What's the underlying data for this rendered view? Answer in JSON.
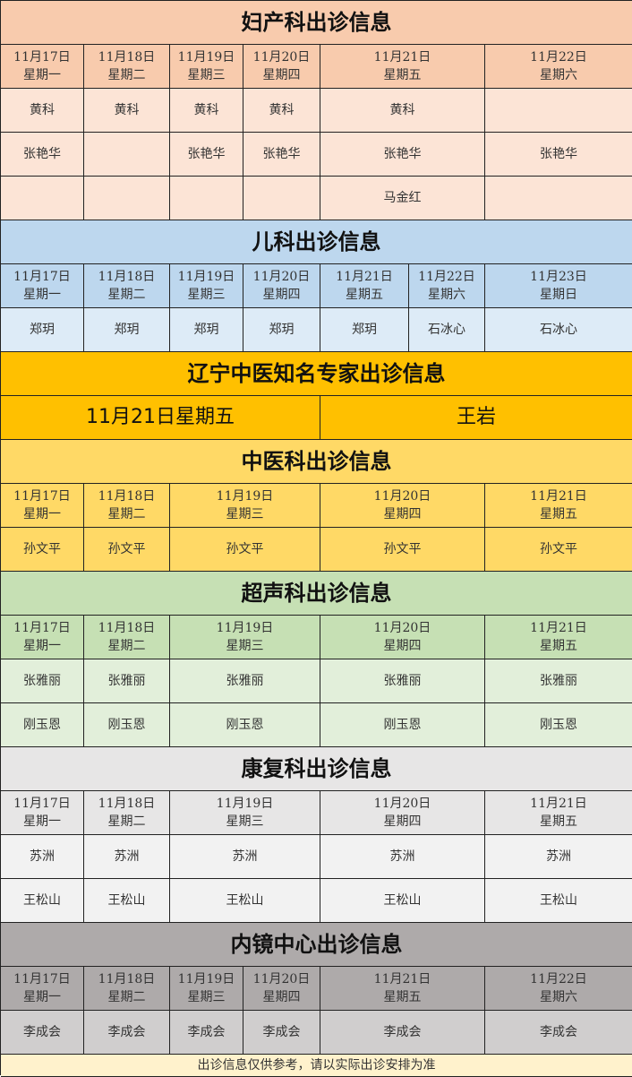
{
  "sections": [
    {
      "title": "妇产科出诊信息",
      "colors": {
        "title": "#f8cbad",
        "header": "#f8cbad",
        "cell": "#fce4d6"
      },
      "headers": [
        {
          "date": "11月17日",
          "weekday": "星期一",
          "span": 1
        },
        {
          "date": "11月18日",
          "weekday": "星期二",
          "span": 1
        },
        {
          "date": "11月19日",
          "weekday": "星期三",
          "span": 1
        },
        {
          "date": "11月20日",
          "weekday": "星期四",
          "span": 1
        },
        {
          "date": "11月21日",
          "weekday": "星期五",
          "span": 2
        },
        {
          "date": "11月22日",
          "weekday": "星期六",
          "span": 1
        }
      ],
      "rows": [
        [
          "黄科",
          "黄科",
          "黄科",
          "黄科",
          "黄科",
          ""
        ],
        [
          "张艳华",
          "",
          "张艳华",
          "张艳华",
          "张艳华",
          "张艳华"
        ],
        [
          "",
          "",
          "",
          "",
          "马金红",
          ""
        ]
      ]
    },
    {
      "title": "儿科出诊信息",
      "colors": {
        "title": "#bdd7ee",
        "header": "#bdd7ee",
        "cell": "#ddebf7"
      },
      "headers": [
        {
          "date": "11月17日",
          "weekday": "星期一",
          "span": 1
        },
        {
          "date": "11月18日",
          "weekday": "星期二",
          "span": 1
        },
        {
          "date": "11月19日",
          "weekday": "星期三",
          "span": 1
        },
        {
          "date": "11月20日",
          "weekday": "星期四",
          "span": 1
        },
        {
          "date": "11月21日",
          "weekday": "星期五",
          "span": 1
        },
        {
          "date": "11月22日",
          "weekday": "星期六",
          "span": 1
        },
        {
          "date": "11月23日",
          "weekday": "星期日",
          "span": 1
        }
      ],
      "rows": [
        [
          "郑玥",
          "郑玥",
          "郑玥",
          "郑玥",
          "郑玥",
          "石冰心",
          "石冰心"
        ]
      ]
    },
    {
      "title": "辽宁中医知名专家出诊信息",
      "colors": {
        "title": "#ffc000",
        "header": "#ffc000",
        "cell": "#ffc000"
      },
      "expert": {
        "day": "11月21日星期五",
        "name": "王岩"
      }
    },
    {
      "title": "中医科出诊信息",
      "colors": {
        "title": "#ffd966",
        "header": "#ffd966",
        "cell": "#ffd966"
      },
      "headers": [
        {
          "date": "11月17日",
          "weekday": "星期一",
          "span": 1
        },
        {
          "date": "11月18日",
          "weekday": "星期二",
          "span": 1
        },
        {
          "date": "11月19日",
          "weekday": "星期三",
          "span": 2
        },
        {
          "date": "11月20日",
          "weekday": "星期四",
          "span": 2
        },
        {
          "date": "11月21日",
          "weekday": "星期五",
          "span": 1
        }
      ],
      "rows": [
        [
          "孙文平",
          "孙文平",
          "孙文平",
          "孙文平",
          "孙文平"
        ]
      ]
    },
    {
      "title": "超声科出诊信息",
      "colors": {
        "title": "#c6e0b4",
        "header": "#c6e0b4",
        "cell": "#e2efda"
      },
      "headers": [
        {
          "date": "11月17日",
          "weekday": "星期一",
          "span": 1
        },
        {
          "date": "11月18日",
          "weekday": "星期二",
          "span": 1
        },
        {
          "date": "11月19日",
          "weekday": "星期三",
          "span": 2
        },
        {
          "date": "11月20日",
          "weekday": "星期四",
          "span": 2
        },
        {
          "date": "11月21日",
          "weekday": "星期五",
          "span": 1
        }
      ],
      "rows": [
        [
          "张雅丽",
          "张雅丽",
          "张雅丽",
          "张雅丽",
          "张雅丽"
        ],
        [
          "刚玉恩",
          "刚玉恩",
          "刚玉恩",
          "刚玉恩",
          "刚玉恩"
        ]
      ]
    },
    {
      "title": "康复科出诊信息",
      "colors": {
        "title": "#e7e6e6",
        "header": "#e7e6e6",
        "cell": "#f2f2f2"
      },
      "headers": [
        {
          "date": "11月17日",
          "weekday": "星期一",
          "span": 1
        },
        {
          "date": "11月18日",
          "weekday": "星期二",
          "span": 1
        },
        {
          "date": "11月19日",
          "weekday": "星期三",
          "span": 2
        },
        {
          "date": "11月20日",
          "weekday": "星期四",
          "span": 2
        },
        {
          "date": "11月21日",
          "weekday": "星期五",
          "span": 1
        }
      ],
      "rows": [
        [
          "苏洲",
          "苏洲",
          "苏洲",
          "苏洲",
          "苏洲"
        ],
        [
          "王松山",
          "王松山",
          "王松山",
          "王松山",
          "王松山"
        ]
      ]
    },
    {
      "title": "内镜中心出诊信息",
      "colors": {
        "title": "#aeaaaa",
        "header": "#aeaaaa",
        "cell": "#d0cece"
      },
      "headers": [
        {
          "date": "11月17日",
          "weekday": "星期一",
          "span": 1
        },
        {
          "date": "11月18日",
          "weekday": "星期二",
          "span": 1
        },
        {
          "date": "11月19日",
          "weekday": "星期三",
          "span": 1
        },
        {
          "date": "11月20日",
          "weekday": "星期四",
          "span": 1
        },
        {
          "date": "11月21日",
          "weekday": "星期五",
          "span": 2
        },
        {
          "date": "11月22日",
          "weekday": "星期六",
          "span": 1
        }
      ],
      "rows": [
        [
          "李成会",
          "李成会",
          "李成会",
          "李成会",
          "李成会",
          "李成会"
        ]
      ]
    }
  ],
  "footer": {
    "text": "出诊信息仅供参考，请以实际出诊安排为准",
    "color": "#fff2cc"
  }
}
